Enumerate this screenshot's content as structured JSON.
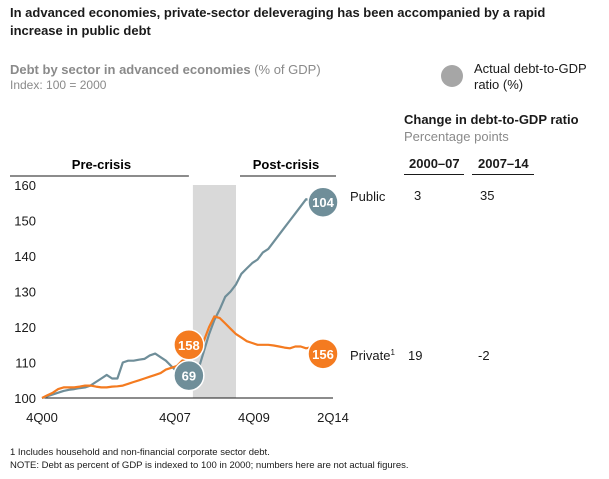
{
  "title": "In advanced economies, private-sector deleveraging has been accompanied by a rapid increase in public debt",
  "subtitle": "Debt by sector in advanced economies",
  "subtitle_unit": "(% of GDP)",
  "index_note": "Index: 100 = 2000",
  "legend_label": "Actual debt-to-GDP ratio (%)",
  "period_labels": {
    "pre": "Pre-crisis",
    "post": "Post-crisis"
  },
  "change_table": {
    "title": "Change in debt-to-GDP ratio",
    "unit": "Percentage points",
    "columns": [
      "2000–07",
      "2007–14"
    ],
    "rows": [
      {
        "series": "Public",
        "values": [
          "3",
          "35"
        ]
      },
      {
        "series": "Private",
        "values": [
          "19",
          "-2"
        ]
      }
    ]
  },
  "footnotes": [
    "1 Includes household and non-financial corporate sector debt.",
    "NOTE: Debt as percent of GDP is indexed to 100 in 2000; numbers here are not actual figures."
  ],
  "colors": {
    "public": "#6f8e99",
    "private": "#f47b20",
    "shade": "#d9d9d9",
    "legend": "#a6a6a6"
  },
  "chart_data": {
    "type": "line",
    "x_ticks": [
      "4Q00",
      "4Q07",
      "4Q09",
      "2Q14"
    ],
    "x_tick_index": [
      0,
      28,
      36,
      54
    ],
    "ylim": [
      100,
      160
    ],
    "y_ticks": [
      100,
      110,
      120,
      130,
      140,
      150,
      160
    ],
    "shaded_range": [
      "4Q07",
      "4Q09"
    ],
    "series": [
      {
        "name": "Public",
        "label_sup": "",
        "values": [
          100,
          100.5,
          101,
          101.5,
          102,
          102.3,
          102.5,
          102.8,
          103,
          103.5,
          104.5,
          105.5,
          106.5,
          105.5,
          105.5,
          110,
          110.5,
          110.5,
          110.8,
          111,
          112,
          112.5,
          111.5,
          110.5,
          109,
          107.5,
          106.5,
          105.5,
          105,
          108,
          113,
          118,
          122,
          125,
          128.5,
          130,
          132,
          135,
          136.5,
          138,
          139,
          141,
          142,
          144,
          146,
          148,
          150,
          152,
          154,
          156,
          155.5,
          154.5,
          155,
          155.5,
          156
        ],
        "start_value": "",
        "end_value": "104"
      },
      {
        "name": "Private",
        "label_sup": "1",
        "values": [
          100,
          100.8,
          101.5,
          102.5,
          103,
          103,
          103,
          103.2,
          103.5,
          103.5,
          103.2,
          103,
          103,
          103.2,
          103.3,
          103.5,
          104,
          104.5,
          105,
          105.5,
          106,
          106.5,
          107,
          108,
          108.5,
          109,
          110.5,
          111,
          111.5,
          112.5,
          116,
          120,
          123,
          122.5,
          121,
          119.5,
          118,
          117,
          116,
          115.5,
          115,
          115,
          115,
          114.8,
          114.5,
          114.2,
          114,
          114.5,
          114.5,
          114,
          114.3,
          113.8,
          113.5,
          113,
          113
        ],
        "start_value": "158",
        "end_value": "156"
      }
    ],
    "start_marker": {
      "series": "Public",
      "value": "69"
    }
  }
}
